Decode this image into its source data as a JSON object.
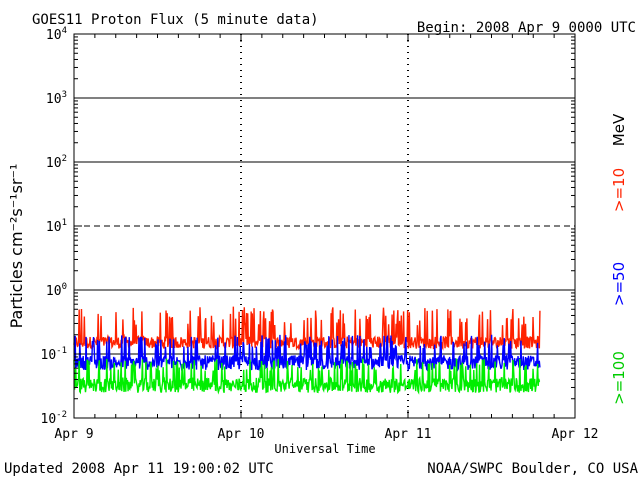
{
  "header": {
    "title": "GOES11 Proton Flux (5 minute data)",
    "begin": "Begin: 2008 Apr 9 0000 UTC"
  },
  "footer": {
    "updated": "Updated 2008 Apr 11 19:00:02 UTC",
    "source": "NOAA/SWPC Boulder, CO USA"
  },
  "chart_data": {
    "type": "line",
    "xlabel": "Universal Time",
    "ylabel": "Particles cm⁻²s⁻¹sr⁻¹",
    "y_scale": "log",
    "ylim": [
      0.01,
      10000
    ],
    "y_ticks": [
      {
        "mant": "10",
        "exp": "4",
        "value": 10000
      },
      {
        "mant": "10",
        "exp": "3",
        "value": 1000
      },
      {
        "mant": "10",
        "exp": "2",
        "value": 100
      },
      {
        "mant": "10",
        "exp": "1",
        "value": 10
      },
      {
        "mant": "10",
        "exp": "0",
        "value": 1
      },
      {
        "mant": "10",
        "exp": "-1",
        "value": 0.1
      },
      {
        "mant": "10",
        "exp": "-2",
        "value": 0.01
      }
    ],
    "x_ticks": [
      "Apr 9",
      "Apr 10",
      "Apr 11",
      "Apr 12"
    ],
    "xlim_days": [
      0,
      3
    ],
    "threshold_lines": [
      10,
      0.1
    ],
    "legend_unit": "MeV",
    "series": [
      {
        "name": ">=10",
        "color": "#ff2200",
        "x_end_days": 2.79,
        "baseline": 0.18,
        "y_min": 0.11,
        "y_max": 0.55
      },
      {
        "name": ">=50",
        "color": "#0000ff",
        "x_end_days": 2.79,
        "baseline": 0.09,
        "y_min": 0.05,
        "y_max": 0.2
      },
      {
        "name": ">=100",
        "color": "#00ee00",
        "x_end_days": 2.79,
        "baseline": 0.04,
        "y_min": 0.022,
        "y_max": 0.085
      }
    ]
  }
}
